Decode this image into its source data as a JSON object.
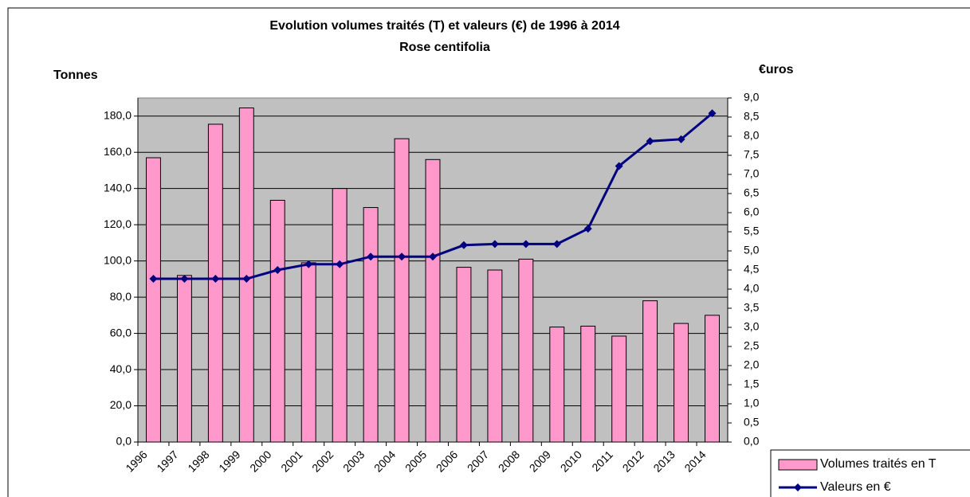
{
  "chart_data": {
    "type": "bar-line",
    "title": "Evolution volumes traités (T) et valeurs (€) de 1996 à 2014",
    "subtitle": "Rose centifolia",
    "y_label": "Tonnes",
    "y2_label": "€uros",
    "categories": [
      "1996",
      "1997",
      "1998",
      "1999",
      "2000",
      "2001",
      "2002",
      "2003",
      "2004",
      "2005",
      "2006",
      "2007",
      "2008",
      "2009",
      "2010",
      "2011",
      "2012",
      "2013",
      "2014"
    ],
    "series": [
      {
        "name": "Volumes traités en T",
        "type": "bar",
        "color": "#ff99cc",
        "axis": "y",
        "values": [
          157,
          92,
          175.5,
          184.5,
          133.5,
          99,
          140,
          129.5,
          167.5,
          156,
          96.5,
          95,
          101,
          63.5,
          64,
          58.5,
          78,
          65.5,
          70
        ]
      },
      {
        "name": "Valeurs en €",
        "type": "line",
        "color": "#000080",
        "axis": "y2",
        "values": [
          4.27,
          4.27,
          4.27,
          4.27,
          4.5,
          4.65,
          4.65,
          4.85,
          4.85,
          4.85,
          5.15,
          5.18,
          5.18,
          5.18,
          5.58,
          7.22,
          7.87,
          7.92,
          8.6
        ]
      }
    ],
    "ylim": [
      0,
      190
    ],
    "yticks": [
      {
        "value": 0,
        "label": "0,0"
      },
      {
        "value": 20,
        "label": "20,0"
      },
      {
        "value": 40,
        "label": "40,0"
      },
      {
        "value": 60,
        "label": "60,0"
      },
      {
        "value": 80,
        "label": "80,0"
      },
      {
        "value": 100,
        "label": "100,0"
      },
      {
        "value": 120,
        "label": "120,0"
      },
      {
        "value": 140,
        "label": "140,0"
      },
      {
        "value": 160,
        "label": "160,0"
      },
      {
        "value": 180,
        "label": "180,0"
      }
    ],
    "y2lim": [
      0,
      9
    ],
    "y2ticks": [
      {
        "value": 0,
        "label": "0,0"
      },
      {
        "value": 0.5,
        "label": "0,5"
      },
      {
        "value": 1,
        "label": "1,0"
      },
      {
        "value": 1.5,
        "label": "1,5"
      },
      {
        "value": 2,
        "label": "2,0"
      },
      {
        "value": 2.5,
        "label": "2,5"
      },
      {
        "value": 3,
        "label": "3,0"
      },
      {
        "value": 3.5,
        "label": "3,5"
      },
      {
        "value": 4,
        "label": "4,0"
      },
      {
        "value": 4.5,
        "label": "4,5"
      },
      {
        "value": 5,
        "label": "5,0"
      },
      {
        "value": 5.5,
        "label": "5,5"
      },
      {
        "value": 6,
        "label": "6,0"
      },
      {
        "value": 6.5,
        "label": "6,5"
      },
      {
        "value": 7,
        "label": "7,0"
      },
      {
        "value": 7.5,
        "label": "7,5"
      },
      {
        "value": 8,
        "label": "8,0"
      },
      {
        "value": 8.5,
        "label": "8,5"
      },
      {
        "value": 9,
        "label": "9,0"
      }
    ],
    "grid": true,
    "plot_background": "#c0c0c0",
    "legend": "lower right"
  }
}
